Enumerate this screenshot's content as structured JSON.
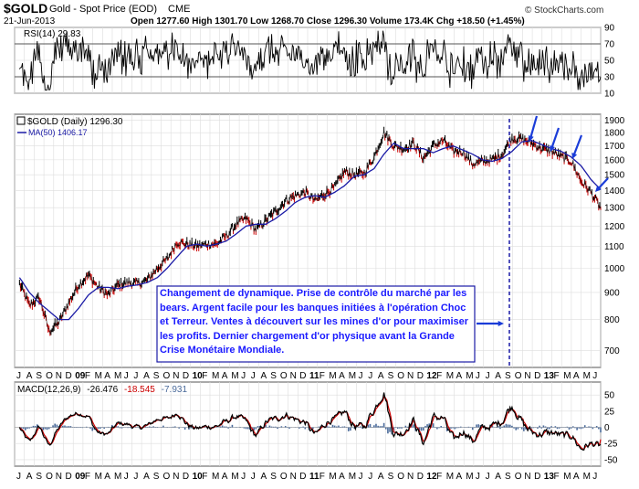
{
  "header": {
    "symbol": "$GOLD",
    "name": "Gold - Spot Price (EOD)",
    "exchange": "CME",
    "date": "21-Jun-2013",
    "ohlc": "Open 1277.60  High 1301.70  Low 1268.70  Close 1296.30  Volume 173.4K  Chg +18.50 (+1.45%)",
    "watermark": "© StockCharts.com"
  },
  "rsi": {
    "label": "RSI(14) 29.83",
    "ticks": [
      "90",
      "70",
      "50",
      "30",
      "10"
    ]
  },
  "price": {
    "label": "$GOLD (Daily) 1296.30",
    "ma_label": "MA(50) 1406.17",
    "ticks": [
      "1900",
      "1800",
      "1700",
      "1600",
      "1500",
      "1400",
      "1300",
      "1200",
      "1100",
      "1000",
      "900",
      "800",
      "700"
    ]
  },
  "macd": {
    "label_prefix": "MACD(12,26,9)",
    "macd_value": "-26.476",
    "signal_value": "-18.545",
    "hist_value": "-7.931",
    "ticks": [
      "50",
      "25",
      "0",
      "-25",
      "-50"
    ]
  },
  "annotation": {
    "text": "Changement de dynamique. Prise de contrôle du marché par les bears. Argent facile pour les banques initiées à l'opération Choc et Terreur. Ventes à découvert sur les mines d'or pour maximiser les profits. Dernier chargement d'or physique avant la Grande Crise Monétaire Mondiale."
  },
  "xaxis": {
    "months": [
      "J",
      "A",
      "S",
      "O",
      "N",
      "D",
      "09",
      "F",
      "M",
      "A",
      "M",
      "J",
      "J",
      "A",
      "S",
      "O",
      "N",
      "D",
      "10",
      "F",
      "M",
      "A",
      "M",
      "J",
      "J",
      "A",
      "S",
      "O",
      "N",
      "D",
      "11",
      "F",
      "M",
      "A",
      "M",
      "J",
      "J",
      "A",
      "S",
      "O",
      "N",
      "D",
      "12",
      "F",
      "M",
      "A",
      "M",
      "J",
      "J",
      "A",
      "S",
      "O",
      "N",
      "D",
      "13",
      "F",
      "M",
      "A",
      "M",
      "J"
    ]
  },
  "colors": {
    "price": "#000000",
    "down": "#cc0000",
    "ma": "#1a1aa6",
    "arrow": "#1a3cd8",
    "annotation_text": "#1a1aff",
    "annotation_border": "#1a1aa6",
    "rsi_fill": "#4a7a4a",
    "macd_line": "#000000",
    "signal_line": "#cc0000",
    "histogram": "#4a6a9a"
  },
  "chart_data": {
    "type": "line",
    "title": "$GOLD Gold - Spot Price (EOD)",
    "x": [
      "2008-07",
      "2008-08",
      "2008-09",
      "2008-10",
      "2008-11",
      "2008-12",
      "2009-01",
      "2009-02",
      "2009-03",
      "2009-04",
      "2009-05",
      "2009-06",
      "2009-07",
      "2009-08",
      "2009-09",
      "2009-10",
      "2009-11",
      "2009-12",
      "2010-01",
      "2010-02",
      "2010-03",
      "2010-04",
      "2010-05",
      "2010-06",
      "2010-07",
      "2010-08",
      "2010-09",
      "2010-10",
      "2010-11",
      "2010-12",
      "2011-01",
      "2011-02",
      "2011-03",
      "2011-04",
      "2011-05",
      "2011-06",
      "2011-07",
      "2011-08",
      "2011-09",
      "2011-10",
      "2011-11",
      "2011-12",
      "2012-01",
      "2012-02",
      "2012-03",
      "2012-04",
      "2012-05",
      "2012-06",
      "2012-07",
      "2012-08",
      "2012-09",
      "2012-10",
      "2012-11",
      "2012-12",
      "2013-01",
      "2013-02",
      "2013-03",
      "2013-04",
      "2013-05",
      "2013-06"
    ],
    "series": [
      {
        "name": "$GOLD (Daily)",
        "values": [
          935,
          850,
          880,
          760,
          790,
          860,
          930,
          970,
          920,
          890,
          930,
          940,
          935,
          950,
          1000,
          1040,
          1120,
          1110,
          1100,
          1110,
          1110,
          1150,
          1210,
          1240,
          1180,
          1230,
          1280,
          1340,
          1370,
          1390,
          1340,
          1380,
          1420,
          1520,
          1500,
          1510,
          1620,
          1800,
          1700,
          1680,
          1720,
          1610,
          1700,
          1740,
          1660,
          1660,
          1570,
          1590,
          1600,
          1640,
          1760,
          1750,
          1720,
          1680,
          1660,
          1620,
          1590,
          1460,
          1390,
          1296
        ]
      },
      {
        "name": "MA(50)",
        "values": [
          960,
          900,
          860,
          830,
          800,
          800,
          840,
          890,
          920,
          920,
          915,
          925,
          930,
          940,
          960,
          1000,
          1050,
          1100,
          1110,
          1100,
          1110,
          1125,
          1160,
          1200,
          1210,
          1210,
          1240,
          1280,
          1330,
          1360,
          1370,
          1360,
          1390,
          1430,
          1490,
          1500,
          1540,
          1640,
          1720,
          1680,
          1680,
          1680,
          1650,
          1680,
          1700,
          1670,
          1640,
          1600,
          1590,
          1610,
          1660,
          1730,
          1740,
          1710,
          1680,
          1660,
          1620,
          1560,
          1470,
          1406
        ]
      }
    ],
    "rsi": {
      "label": "RSI(14)",
      "last": 29.83,
      "ylim": [
        10,
        90
      ]
    },
    "macd": {
      "params": "12,26,9",
      "macd": -26.476,
      "signal": -18.545,
      "histogram": -7.931,
      "ylim": [
        -60,
        70
      ]
    },
    "ylim": [
      650,
      1950
    ],
    "yscale": "log"
  }
}
